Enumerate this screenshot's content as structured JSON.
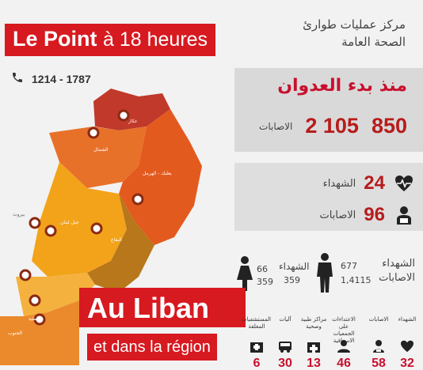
{
  "brand": {
    "name": "Le Point",
    "suffix": "à 18 heures"
  },
  "phone": {
    "number": "1214 - 1787",
    "icon": "phone-icon"
  },
  "header": {
    "line1": "مركز عمليات طوارئ",
    "line2": "الصحة العامة"
  },
  "since_aggression": {
    "title": "منذ بدء العدوان",
    "martyrs": "850",
    "injured": "2 105",
    "injured_label": "الاصابات"
  },
  "today": {
    "martyrs": "24",
    "martyrs_label": "الشهداء",
    "injured": "96",
    "injured_label": "الاصابات"
  },
  "gender": {
    "men_martyrs": "677",
    "men_injured": "1,4115",
    "women_martyrs": "66",
    "women_injured": "359",
    "children_label": "الشهداء",
    "children_martyrs": "359",
    "martyrs_label": "الشهداء",
    "injured_label": "الاصابات"
  },
  "map_labels": {
    "akkar": "عكار",
    "north": "الشمال",
    "baalbek": "بعلبك - الهرمل",
    "beirut": "بيروت",
    "mount": "جبل لبنان",
    "bekaa": "البقاع",
    "nabatieh": "النبطية",
    "south": "الجنوب"
  },
  "headline": {
    "main": "Au Liban",
    "sub": "et dans la région"
  },
  "bottom_stats": [
    {
      "label": "المستشفيات المغلقة",
      "value": "6",
      "icon": "hospital-icon"
    },
    {
      "label": "آليات",
      "value": "30",
      "icon": "ambulance-icon"
    },
    {
      "label": "مراكز طبية وصحية",
      "value": "13",
      "icon": "clinic-icon"
    },
    {
      "label": "الاعتداءات على الجمعيات الاسعافية",
      "value": "46",
      "icon": "paramedic-icon"
    },
    {
      "label": "الاصابات",
      "value": "58",
      "icon": "injured-icon"
    },
    {
      "label": "الشهداء",
      "value": "32",
      "icon": "heart-pulse-icon"
    }
  ],
  "colors": {
    "brand_red": "#d71920",
    "stat_red": "#b71c1c"
  }
}
